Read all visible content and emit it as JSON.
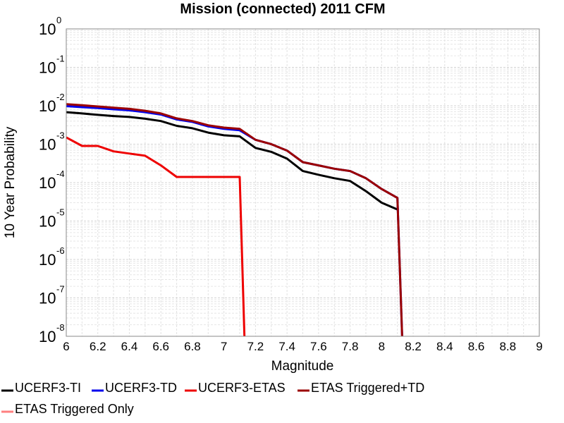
{
  "chart_data": {
    "type": "line",
    "title": "Mission (connected) 2011 CFM",
    "xlabel": "Magnitude",
    "ylabel": "10 Year Probability",
    "xlim": [
      6,
      9
    ],
    "ylim": [
      1e-08,
      1
    ],
    "yscale": "log",
    "grid": true,
    "legend_position": "bottom",
    "x_ticks": [
      "6",
      "6.2",
      "6.4",
      "6.6",
      "6.8",
      "7",
      "7.2",
      "7.4",
      "7.6",
      "7.8",
      "8",
      "8.2",
      "8.4",
      "8.6",
      "8.8",
      "9"
    ],
    "y_ticks": [
      {
        "base": "10",
        "exp": "0"
      },
      {
        "base": "10",
        "exp": "-1"
      },
      {
        "base": "10",
        "exp": "-2"
      },
      {
        "base": "10",
        "exp": "-3"
      },
      {
        "base": "10",
        "exp": "-4"
      },
      {
        "base": "10",
        "exp": "-5"
      },
      {
        "base": "10",
        "exp": "-6"
      },
      {
        "base": "10",
        "exp": "-7"
      },
      {
        "base": "10",
        "exp": "-8"
      }
    ],
    "series": [
      {
        "name": "UCERF3-TI",
        "color": "#000000",
        "x": [
          6.0,
          6.1,
          6.2,
          6.3,
          6.4,
          6.5,
          6.6,
          6.7,
          6.8,
          6.9,
          7.0,
          7.1,
          7.2,
          7.3,
          7.4,
          7.5,
          7.6,
          7.7,
          7.8,
          7.9,
          8.0,
          8.1
        ],
        "y": [
          0.0068,
          0.0063,
          0.0058,
          0.0054,
          0.0051,
          0.0046,
          0.004,
          0.003,
          0.0026,
          0.002,
          0.0017,
          0.0016,
          0.0008,
          0.00063,
          0.00042,
          0.0002,
          0.00016,
          0.00013,
          0.00011,
          6e-05,
          3e-05,
          2e-05
        ]
      },
      {
        "name": "UCERF3-TD",
        "color": "#0000ee",
        "x": [
          6.0,
          6.1,
          6.2,
          6.3,
          6.4,
          6.5,
          6.6,
          6.7,
          6.8,
          6.9,
          7.0,
          7.1,
          7.2,
          7.3,
          7.4,
          7.5,
          7.6,
          7.7,
          7.8,
          7.9,
          8.0,
          8.1,
          8.13
        ],
        "y": [
          0.0098,
          0.0092,
          0.0087,
          0.0081,
          0.0076,
          0.0068,
          0.0059,
          0.0044,
          0.0038,
          0.0029,
          0.0025,
          0.0023,
          0.0013,
          0.001,
          0.00068,
          0.00034,
          0.00028,
          0.00023,
          0.0002,
          0.00013,
          6.8e-05,
          4e-05,
          1e-08
        ]
      },
      {
        "name": "UCERF3-ETAS",
        "color": "#ee0000",
        "x": [
          6.0,
          6.1,
          6.2,
          6.3,
          6.4,
          6.5,
          6.6,
          6.7,
          6.8,
          6.9,
          7.0,
          7.1,
          7.13
        ],
        "y": [
          0.0015,
          0.0009,
          0.0009,
          0.00065,
          0.00057,
          0.0005,
          0.00028,
          0.00014,
          0.00014,
          0.00014,
          0.00014,
          0.00014,
          1e-08
        ]
      },
      {
        "name": "ETAS Triggered+TD",
        "color": "#9b0000",
        "x": [
          6.0,
          6.1,
          6.2,
          6.3,
          6.4,
          6.5,
          6.6,
          6.7,
          6.8,
          6.9,
          7.0,
          7.1,
          7.2,
          7.3,
          7.4,
          7.5,
          7.6,
          7.7,
          7.8,
          7.9,
          8.0,
          8.1,
          8.13
        ],
        "y": [
          0.011,
          0.0103,
          0.0096,
          0.0089,
          0.0083,
          0.0074,
          0.0063,
          0.0047,
          0.004,
          0.0031,
          0.0027,
          0.0025,
          0.0013,
          0.001,
          0.00068,
          0.00034,
          0.00028,
          0.00023,
          0.0002,
          0.00013,
          6.8e-05,
          4e-05,
          1e-08
        ]
      },
      {
        "name": "ETAS Triggered Only",
        "color": "#ff8080",
        "x": [],
        "y": []
      }
    ]
  }
}
